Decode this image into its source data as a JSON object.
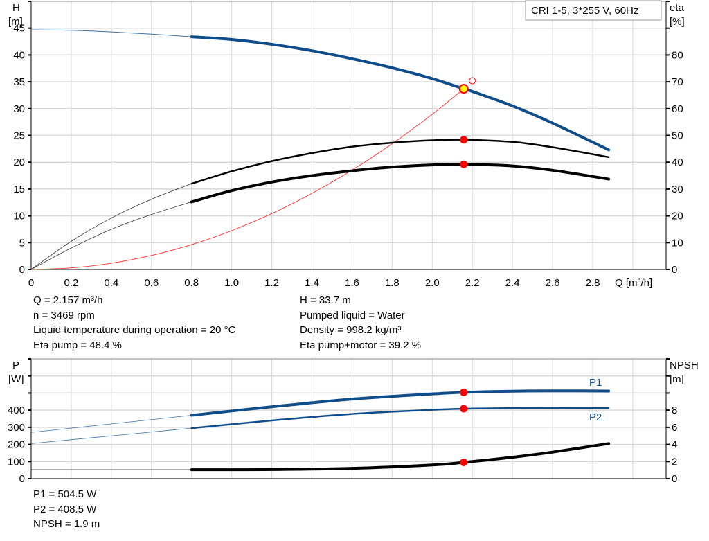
{
  "legend_box": "CRI 1-5, 3*255 V, 60Hz",
  "colors": {
    "head": "#0f4c8a",
    "eta": "#000000",
    "system": "#ff4040",
    "duty_point": "#ff0000",
    "duty_fill": "#ffff00",
    "power": "#0f4c8a",
    "npsh": "#000000",
    "grid": "#d8d8d8"
  },
  "chart_data": [
    {
      "type": "line",
      "x_axis": {
        "label": "Q [m³/h]",
        "range": [
          0,
          3.0
        ],
        "ticks": [
          "0",
          "0.2",
          "0.4",
          "0.6",
          "0.8",
          "1.0",
          "1.2",
          "1.4",
          "1.6",
          "1.8",
          "2.0",
          "2.2",
          "2.4",
          "2.6",
          "2.8"
        ]
      },
      "y_axis_left": {
        "label_top": "H",
        "label_unit": "[m]",
        "range": [
          0,
          50
        ],
        "ticks": [
          "0",
          "5",
          "10",
          "15",
          "20",
          "25",
          "30",
          "35",
          "40",
          "45"
        ]
      },
      "y_axis_right": {
        "label_top": "eta",
        "label_unit": "[%]",
        "range": [
          0,
          100
        ],
        "ticks": [
          "0",
          "10",
          "20",
          "30",
          "40",
          "50",
          "60",
          "70",
          "80"
        ]
      },
      "grid": true,
      "series": [
        {
          "key": "head",
          "axis": "left",
          "x": [
            0,
            0.2,
            0.4,
            0.6,
            0.8,
            1.0,
            1.2,
            1.4,
            1.6,
            1.8,
            2.0,
            2.157,
            2.2,
            2.4,
            2.6,
            2.88
          ],
          "y": [
            44.7,
            44.6,
            44.3,
            43.9,
            43.4,
            42.9,
            42.0,
            40.8,
            39.3,
            37.6,
            35.6,
            33.7,
            33.2,
            30.5,
            27.3,
            22.3
          ]
        },
        {
          "key": "eta_pump",
          "axis": "right",
          "x": [
            0,
            0.2,
            0.4,
            0.6,
            0.8,
            1.0,
            1.2,
            1.4,
            1.6,
            1.8,
            2.0,
            2.157,
            2.4,
            2.6,
            2.88
          ],
          "y": [
            0,
            10.5,
            19.2,
            26.2,
            32.0,
            36.6,
            40.4,
            43.4,
            45.8,
            47.3,
            48.2,
            48.4,
            47.6,
            45.6,
            41.9
          ]
        },
        {
          "key": "eta_pump_motor",
          "axis": "right",
          "x": [
            0,
            0.2,
            0.4,
            0.6,
            0.8,
            1.0,
            1.2,
            1.4,
            1.6,
            1.8,
            2.0,
            2.157,
            2.4,
            2.6,
            2.88
          ],
          "y": [
            0,
            8.0,
            15.0,
            20.5,
            25.2,
            29.4,
            32.6,
            35.0,
            36.8,
            38.2,
            39.0,
            39.2,
            38.6,
            37.0,
            33.7
          ]
        },
        {
          "key": "system_curve",
          "axis": "left",
          "x": [
            0,
            0.2,
            0.4,
            0.6,
            0.8,
            1.0,
            1.2,
            1.4,
            1.6,
            1.8,
            2.0,
            2.157
          ],
          "y": [
            0,
            0.29,
            1.16,
            2.61,
            4.63,
            7.24,
            10.43,
            14.19,
            18.53,
            23.46,
            28.96,
            33.7
          ]
        }
      ],
      "duty_point": {
        "Q": 2.157,
        "H": 33.7,
        "eta_pump": 48.4,
        "eta_pump_motor": 39.2
      },
      "requested_point": {
        "Q": 2.2,
        "H": 35.2
      }
    },
    {
      "type": "line",
      "x_axis": {
        "range": [
          0,
          3.0
        ]
      },
      "y_axis_left": {
        "label_top": "P",
        "label_unit": "[W]",
        "range": [
          0,
          700
        ],
        "ticks": [
          "0",
          "100",
          "200",
          "300",
          "400"
        ]
      },
      "y_axis_right": {
        "label_top": "NPSH",
        "label_unit": "[m]",
        "range": [
          0,
          14
        ],
        "ticks": [
          "0",
          "2",
          "4",
          "6",
          "8"
        ]
      },
      "grid": true,
      "series": [
        {
          "key": "P1",
          "name": "P1",
          "axis": "left",
          "x": [
            0,
            0.4,
            0.8,
            1.2,
            1.6,
            2.0,
            2.157,
            2.4,
            2.6,
            2.88
          ],
          "y": [
            270,
            320,
            370,
            420,
            465,
            495,
            504.5,
            511,
            513,
            512
          ]
        },
        {
          "key": "P2",
          "name": "P2",
          "axis": "left",
          "x": [
            0,
            0.4,
            0.8,
            1.2,
            1.6,
            2.0,
            2.157,
            2.4,
            2.6,
            2.88
          ],
          "y": [
            205,
            250,
            295,
            340,
            378,
            402,
            408.5,
            412,
            413,
            412
          ]
        },
        {
          "key": "npsh",
          "axis": "right",
          "x": [
            0,
            0.4,
            0.8,
            1.2,
            1.6,
            2.0,
            2.157,
            2.4,
            2.6,
            2.88
          ],
          "y": [
            1.04,
            1.04,
            1.04,
            1.06,
            1.2,
            1.6,
            1.9,
            2.5,
            3.1,
            4.1
          ]
        }
      ],
      "duty_point": {
        "Q": 2.157,
        "P1": 504.5,
        "P2": 408.5,
        "NPSH": 1.9
      }
    }
  ],
  "info_upper": {
    "left": [
      "Q = 2.157 m³/h",
      "n = 3469 rpm",
      "Liquid temperature during operation = 20 °C",
      "Eta pump = 48.4 %"
    ],
    "right": [
      "H = 33.7 m",
      "Pumped liquid = Water",
      "Density = 998.2 kg/m³",
      "Eta pump+motor = 39.2 %"
    ]
  },
  "info_lower": [
    "P1 = 504.5 W",
    "P2 = 408.5 W",
    "NPSH = 1.9 m"
  ]
}
